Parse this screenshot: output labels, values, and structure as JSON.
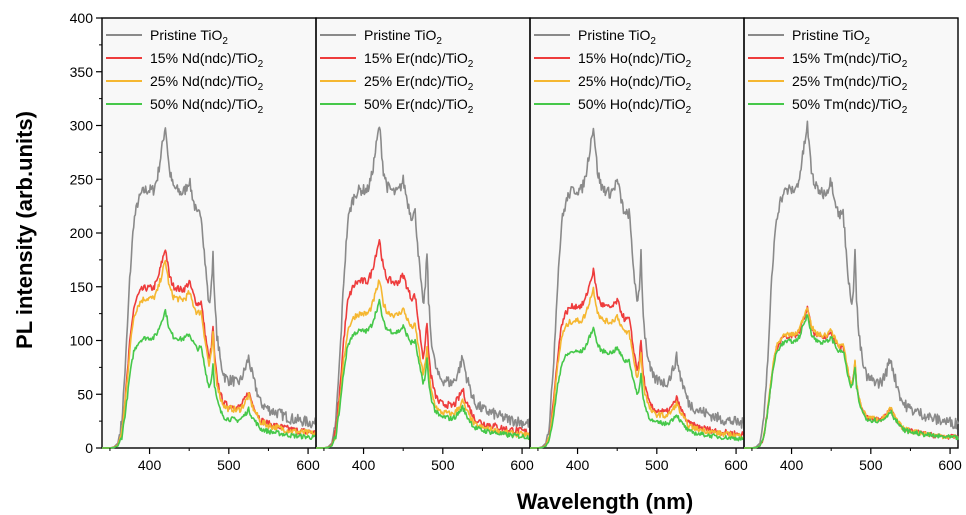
{
  "chart_data": {
    "type": "line",
    "ylabel": "PL intensity (arb.units)",
    "xlabel": "Wavelength (nm)",
    "xlim": [
      340,
      610
    ],
    "ylim": [
      0,
      400
    ],
    "x_ticks": [
      400,
      500,
      600
    ],
    "y_ticks": [
      0,
      50,
      100,
      150,
      200,
      250,
      300,
      350,
      400
    ],
    "grid": false,
    "legend_placement": "top",
    "colors": {
      "pristine": "#8a8a8a",
      "p15": "#ee3c3c",
      "p25": "#f5b731",
      "p50": "#46c84a"
    },
    "panels": [
      {
        "legend": [
          {
            "main": "Pristine TiO",
            "sub": "2"
          },
          {
            "main": "15% Nd(ndc)/TiO",
            "sub": "2"
          },
          {
            "main": "25% Nd(ndc)/TiO",
            "sub": "2"
          },
          {
            "main": "50% Nd(ndc)/TiO",
            "sub": "2"
          }
        ],
        "peaks": [
          300,
          186,
          174,
          128
        ]
      },
      {
        "legend": [
          {
            "main": "Pristine TiO",
            "sub": "2"
          },
          {
            "main": "15% Er(ndc)/TiO",
            "sub": "2"
          },
          {
            "main": "25% Er(ndc)/TiO",
            "sub": "2"
          },
          {
            "main": "50% Er(ndc)/TiO",
            "sub": "2"
          }
        ],
        "peaks": [
          300,
          194,
          156,
          136
        ]
      },
      {
        "legend": [
          {
            "main": "Pristine TiO",
            "sub": "2"
          },
          {
            "main": "15% Ho(ndc)/TiO",
            "sub": "2"
          },
          {
            "main": "25% Ho(ndc)/TiO",
            "sub": "2"
          },
          {
            "main": "50% Ho(ndc)/TiO",
            "sub": "2"
          }
        ],
        "peaks": [
          300,
          165,
          148,
          112
        ]
      },
      {
        "legend": [
          {
            "main": "Pristine TiO",
            "sub": "2"
          },
          {
            "main": "15% Tm(ndc)/TiO",
            "sub": "2"
          },
          {
            "main": "25% Tm(ndc)/TiO",
            "sub": "2"
          },
          {
            "main": "50% Tm(ndc)/TiO",
            "sub": "2"
          }
        ],
        "peaks": [
          300,
          130,
          132,
          124
        ]
      }
    ],
    "shape": {
      "x": [
        340,
        350,
        355,
        360,
        365,
        370,
        375,
        380,
        385,
        390,
        395,
        400,
        405,
        410,
        415,
        420,
        425,
        430,
        435,
        440,
        445,
        450,
        455,
        460,
        465,
        470,
        475,
        478,
        480,
        482,
        485,
        490,
        495,
        500,
        505,
        510,
        515,
        520,
        525,
        530,
        535,
        540,
        550,
        560,
        570,
        580,
        590,
        600,
        610
      ],
      "y": [
        0.0,
        0.0,
        0.003,
        0.015,
        0.08,
        0.28,
        0.52,
        0.7,
        0.76,
        0.79,
        0.8,
        0.8,
        0.8,
        0.84,
        0.92,
        1.0,
        0.86,
        0.81,
        0.8,
        0.79,
        0.8,
        0.83,
        0.77,
        0.72,
        0.73,
        0.58,
        0.44,
        0.5,
        0.61,
        0.46,
        0.35,
        0.26,
        0.22,
        0.21,
        0.21,
        0.2,
        0.21,
        0.24,
        0.28,
        0.22,
        0.18,
        0.14,
        0.12,
        0.11,
        0.1,
        0.09,
        0.085,
        0.08,
        0.075
      ]
    }
  }
}
